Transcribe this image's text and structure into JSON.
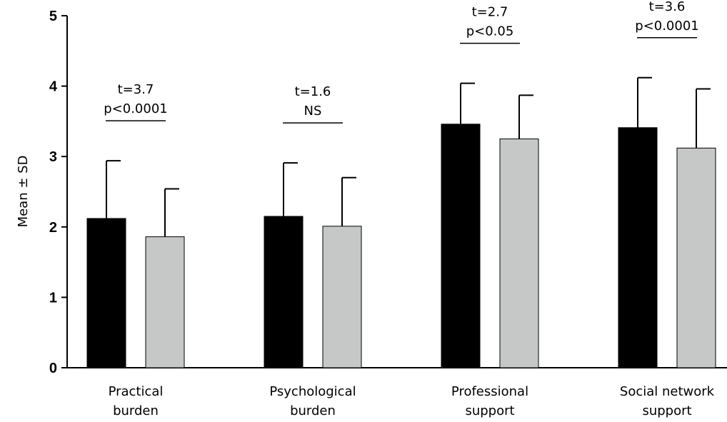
{
  "chart_data": {
    "type": "bar",
    "title": "",
    "xlabel": "",
    "ylabel": "Mean ± SD",
    "ylim": [
      0,
      5
    ],
    "yticks": [
      "0",
      "1",
      "2",
      "3",
      "4",
      "5"
    ],
    "categories": [
      [
        "Practical",
        "burden"
      ],
      [
        "Psychological",
        "burden"
      ],
      [
        "Professional",
        "support"
      ],
      [
        "Social network",
        "support"
      ]
    ],
    "series": [
      {
        "color": "#000000",
        "values": [
          2.12,
          2.15,
          3.46,
          3.41
        ],
        "sd": [
          0.82,
          0.76,
          0.58,
          0.71
        ]
      },
      {
        "color": "#c6c8c7",
        "values": [
          1.86,
          2.01,
          3.25,
          3.12
        ],
        "sd": [
          0.68,
          0.69,
          0.62,
          0.84
        ]
      }
    ],
    "annotations": [
      {
        "lines": [
          "t=3.7",
          "p<0.0001"
        ]
      },
      {
        "lines": [
          "t=1.6",
          "NS"
        ]
      },
      {
        "lines": [
          "t=2.7",
          "p<0.05"
        ]
      },
      {
        "lines": [
          "t=3.6",
          "p<0.0001"
        ]
      }
    ],
    "grid": false,
    "legend": "none"
  }
}
